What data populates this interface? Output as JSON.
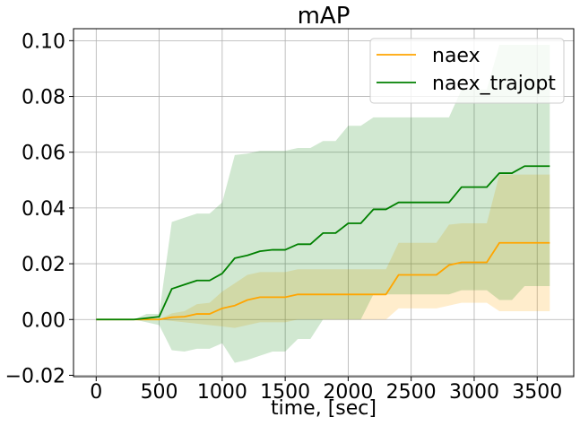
{
  "chart_data": {
    "type": "line",
    "title": "mAP",
    "xlabel": "time, [sec]",
    "ylabel": "",
    "xlim": [
      -180,
      3790
    ],
    "ylim": [
      -0.0205,
      0.1043
    ],
    "x_ticks": [
      0,
      500,
      1000,
      1500,
      2000,
      2500,
      3000,
      3500
    ],
    "y_ticks": [
      -0.02,
      0.0,
      0.02,
      0.04,
      0.06,
      0.08,
      0.1
    ],
    "x_tick_labels": [
      "0",
      "500",
      "1000",
      "1500",
      "2000",
      "2500",
      "3000",
      "3500"
    ],
    "y_tick_labels": [
      "−0.02",
      "0.00",
      "0.02",
      "0.04",
      "0.06",
      "0.08",
      "0.10"
    ],
    "grid": true,
    "legend_position": "top-right",
    "x": [
      0,
      100,
      200,
      300,
      400,
      500,
      600,
      700,
      800,
      900,
      1000,
      1100,
      1200,
      1300,
      1400,
      1500,
      1600,
      1700,
      1800,
      1900,
      2000,
      2100,
      2200,
      2300,
      2400,
      2500,
      2600,
      2700,
      2800,
      2900,
      3000,
      3100,
      3200,
      3300,
      3400,
      3500,
      3600
    ],
    "series": [
      {
        "name": "naex",
        "color": "#ffa500",
        "band_color": "#ffa500",
        "band_opacity": 0.2,
        "values": [
          0,
          0,
          0,
          0,
          0,
          0,
          0.0008,
          0.001,
          0.002,
          0.002,
          0.004,
          0.005,
          0.007,
          0.008,
          0.008,
          0.008,
          0.009,
          0.009,
          0.009,
          0.009,
          0.009,
          0.009,
          0.009,
          0.009,
          0.016,
          0.016,
          0.016,
          0.016,
          0.0195,
          0.0205,
          0.0205,
          0.0205,
          0.0275,
          0.0275,
          0.0275,
          0.0275,
          0.0275
        ],
        "lower": [
          0,
          0,
          0,
          0,
          0,
          0,
          -0.0005,
          -0.001,
          -0.0015,
          -0.002,
          -0.0025,
          -0.003,
          -0.002,
          -0.001,
          -0.001,
          -0.001,
          0,
          0,
          0,
          0,
          0,
          0,
          0,
          0,
          0.004,
          0.004,
          0.004,
          0.004,
          0.005,
          0.006,
          0.006,
          0.006,
          0.003,
          0.003,
          0.003,
          0.003,
          0.003
        ],
        "upper": [
          0,
          0,
          0,
          0,
          0,
          0,
          0.0022,
          0.003,
          0.0055,
          0.006,
          0.01,
          0.013,
          0.016,
          0.017,
          0.017,
          0.017,
          0.018,
          0.018,
          0.018,
          0.018,
          0.018,
          0.018,
          0.018,
          0.018,
          0.0275,
          0.0275,
          0.0275,
          0.0275,
          0.034,
          0.0345,
          0.0345,
          0.0345,
          0.052,
          0.052,
          0.052,
          0.052,
          0.052
        ]
      },
      {
        "name": "naex_trajopt",
        "color": "#008000",
        "band_color": "#008000",
        "band_opacity": 0.18,
        "values": [
          0,
          0,
          0,
          0,
          0.0005,
          0.001,
          0.011,
          0.0125,
          0.014,
          0.014,
          0.0165,
          0.022,
          0.023,
          0.0245,
          0.025,
          0.025,
          0.027,
          0.027,
          0.031,
          0.031,
          0.0345,
          0.0345,
          0.0395,
          0.0395,
          0.042,
          0.042,
          0.042,
          0.042,
          0.042,
          0.0475,
          0.0475,
          0.0475,
          0.0525,
          0.0525,
          0.055,
          0.055,
          0.055
        ],
        "lower": [
          0,
          0,
          0,
          0,
          -0.001,
          -0.002,
          -0.011,
          -0.0115,
          -0.0105,
          -0.0105,
          -0.0085,
          -0.0155,
          -0.0145,
          -0.013,
          -0.0115,
          -0.0115,
          -0.007,
          -0.007,
          0,
          0,
          0,
          0,
          0.009,
          0.009,
          0.009,
          0.009,
          0.009,
          0.009,
          0.009,
          0.0105,
          0.0105,
          0.0105,
          0.007,
          0.007,
          0.012,
          0.012,
          0.012
        ],
        "upper": [
          0,
          0,
          0,
          0,
          0.002,
          0.002,
          0.035,
          0.0365,
          0.038,
          0.038,
          0.042,
          0.059,
          0.0595,
          0.0605,
          0.0605,
          0.0605,
          0.0615,
          0.0615,
          0.064,
          0.064,
          0.0695,
          0.0695,
          0.0725,
          0.0725,
          0.0725,
          0.0725,
          0.0725,
          0.0725,
          0.0725,
          0.0825,
          0.0825,
          0.0825,
          0.0985,
          0.0985,
          0.0985,
          0.0985,
          0.0985
        ]
      }
    ]
  }
}
